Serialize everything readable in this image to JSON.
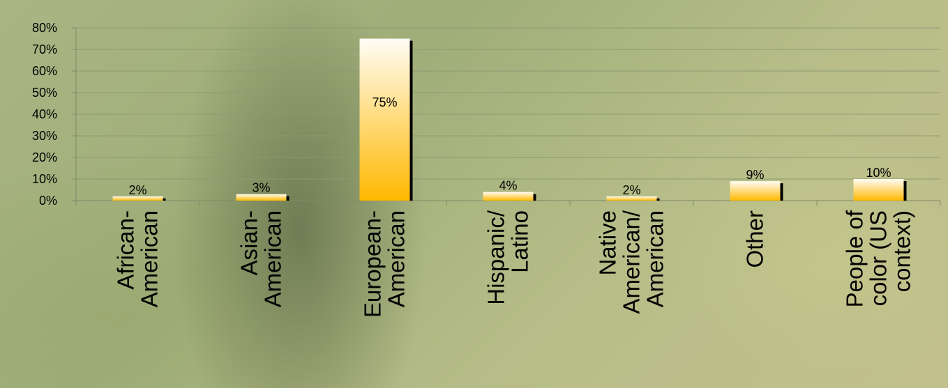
{
  "chart_data": {
    "type": "bar",
    "title": "",
    "xlabel": "",
    "ylabel": "",
    "categories": [
      [
        "African-",
        "American"
      ],
      [
        "Asian-",
        "American"
      ],
      [
        "European-",
        "American"
      ],
      [
        "Hispanic/",
        "Latino"
      ],
      [
        "Native",
        "American/",
        "American"
      ],
      [
        "Other"
      ],
      [
        "People of",
        "color (US",
        "context)"
      ]
    ],
    "values": [
      2,
      3,
      75,
      4,
      2,
      9,
      10
    ],
    "data_labels": [
      "2%",
      "3%",
      "75%",
      "4%",
      "2%",
      "9%",
      "10%"
    ],
    "yticks": [
      "0%",
      "10%",
      "20%",
      "30%",
      "40%",
      "50%",
      "60%",
      "70%",
      "80%"
    ],
    "ylim": [
      0,
      80
    ],
    "grid": true,
    "legend": "none",
    "colors": {
      "bar_top": "#fffdf5",
      "bar_bottom": "#ffb800",
      "bar_shadow": "#000000",
      "gridline": "#8c9a72",
      "axis": "#7f8a66"
    }
  }
}
